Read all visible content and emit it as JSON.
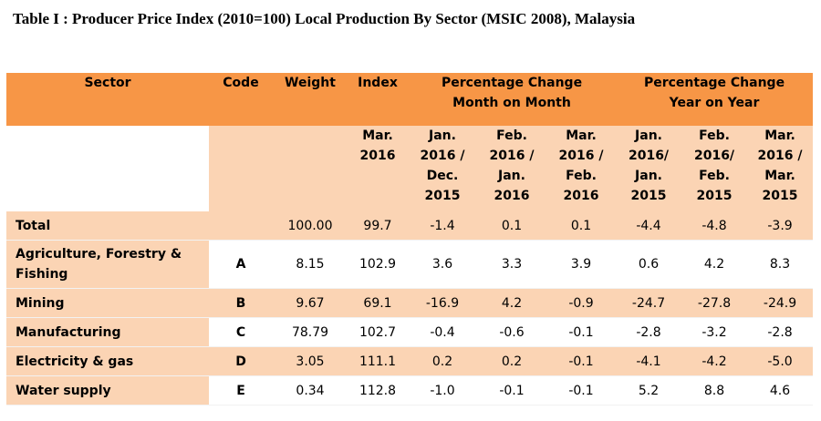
{
  "title": "Table I : Producer Price Index (2010=100) Local Production By Sector (MSIC 2008), Malaysia",
  "headers": {
    "sector": "Sector",
    "code": "Code",
    "weight": "Weight",
    "index": "Index",
    "mom": "Percentage Change Month on Month",
    "yoy": "Percentage Change Year on Year",
    "sub": {
      "index": "Mar. 2016",
      "mom1": "Jan. 2016 / Dec. 2015",
      "mom2": "Feb. 2016 / Jan. 2016",
      "mom3": "Mar. 2016 / Feb. 2016",
      "yoy1": "Jan. 2016/ Jan. 2015",
      "yoy2": "Feb. 2016/ Feb. 2015",
      "yoy3": "Mar. 2016 / Mar. 2015"
    }
  },
  "rows": [
    {
      "sector": "Total",
      "code": "",
      "weight": "100.00",
      "index": "99.7",
      "mom1": "-1.4",
      "mom2": "0.1",
      "mom3": "0.1",
      "yoy1": "-4.4",
      "yoy2": "-4.8",
      "yoy3": "-3.9"
    },
    {
      "sector": "Agriculture, Forestry & Fishing",
      "code": "A",
      "weight": "8.15",
      "index": "102.9",
      "mom1": "3.6",
      "mom2": "3.3",
      "mom3": "3.9",
      "yoy1": "0.6",
      "yoy2": "4.2",
      "yoy3": "8.3"
    },
    {
      "sector": "Mining",
      "code": "B",
      "weight": "9.67",
      "index": "69.1",
      "mom1": "-16.9",
      "mom2": "4.2",
      "mom3": "-0.9",
      "yoy1": "-24.7",
      "yoy2": "-27.8",
      "yoy3": "-24.9"
    },
    {
      "sector": "Manufacturing",
      "code": "C",
      "weight": "78.79",
      "index": "102.7",
      "mom1": "-0.4",
      "mom2": "-0.6",
      "mom3": "-0.1",
      "yoy1": "-2.8",
      "yoy2": "-3.2",
      "yoy3": "-2.8"
    },
    {
      "sector": "Electricity & gas",
      "code": "D",
      "weight": "3.05",
      "index": "111.1",
      "mom1": "0.2",
      "mom2": "0.2",
      "mom3": "-0.1",
      "yoy1": "-4.1",
      "yoy2": "-4.2",
      "yoy3": "-5.0"
    },
    {
      "sector": "Water supply",
      "code": "E",
      "weight": "0.34",
      "index": "112.8",
      "mom1": "-1.0",
      "mom2": "-0.1",
      "mom3": "-0.1",
      "yoy1": "5.2",
      "yoy2": "8.8",
      "yoy3": "4.6"
    }
  ]
}
